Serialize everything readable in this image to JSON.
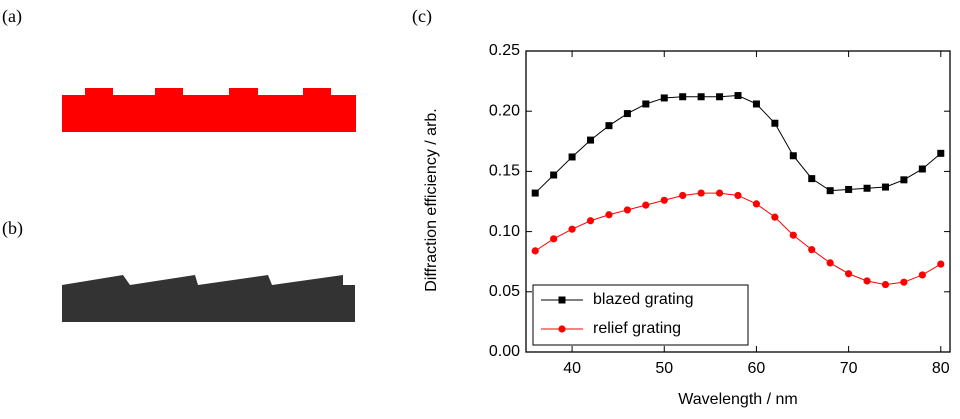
{
  "panel_labels": [
    "(a)",
    "(b)",
    "(c)"
  ],
  "chart_data": {
    "type": "line",
    "xlabel": "Wavelength / nm",
    "ylabel": "Diffraction efficiency / arb.",
    "x": [
      36,
      38,
      40,
      42,
      44,
      46,
      48,
      50,
      52,
      54,
      56,
      58,
      60,
      62,
      64,
      66,
      68,
      70,
      72,
      74,
      76,
      78,
      80
    ],
    "series": [
      {
        "name": "blazed grating",
        "color": "#000000",
        "marker": "square",
        "values": [
          0.132,
          0.147,
          0.162,
          0.176,
          0.188,
          0.198,
          0.206,
          0.211,
          0.212,
          0.212,
          0.212,
          0.213,
          0.206,
          0.19,
          0.163,
          0.144,
          0.134,
          0.135,
          0.136,
          0.137,
          0.143,
          0.152,
          0.165
        ]
      },
      {
        "name": "relief grating",
        "color": "#ff0000",
        "marker": "circle",
        "values": [
          0.084,
          0.094,
          0.102,
          0.109,
          0.114,
          0.118,
          0.122,
          0.126,
          0.13,
          0.132,
          0.132,
          0.13,
          0.123,
          0.112,
          0.097,
          0.085,
          0.074,
          0.065,
          0.059,
          0.056,
          0.058,
          0.064,
          0.073
        ]
      }
    ],
    "xlim": [
      35,
      81
    ],
    "xticks": [
      40,
      50,
      60,
      70,
      80
    ],
    "ylim": [
      0,
      0.25
    ],
    "yticks": [
      {
        "value": 0,
        "label": "0.00"
      },
      {
        "value": 0.05,
        "label": "0.05"
      },
      {
        "value": 0.1,
        "label": "0.10"
      },
      {
        "value": 0.15,
        "label": "0.15"
      },
      {
        "value": 0.2,
        "label": "0.20"
      },
      {
        "value": 0.25,
        "label": "0.25"
      }
    ],
    "legend": "lower left"
  }
}
